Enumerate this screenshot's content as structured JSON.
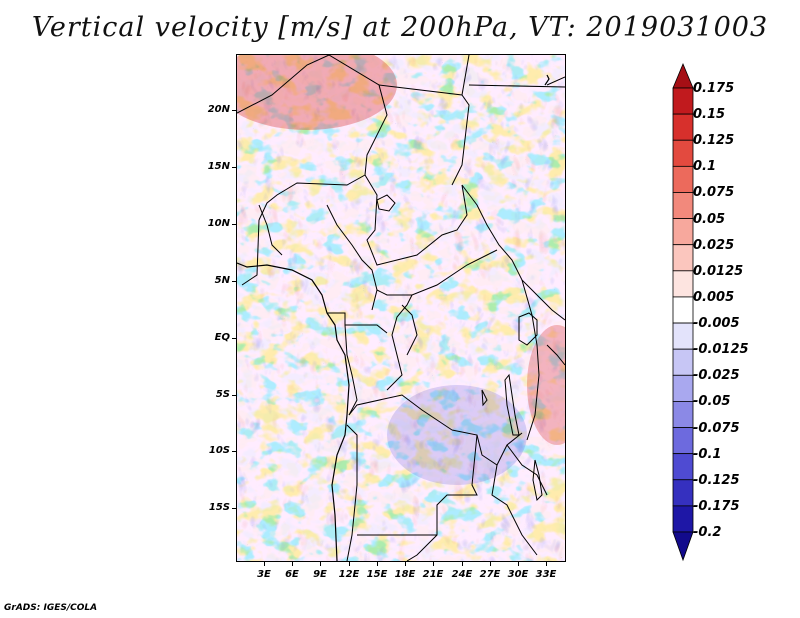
{
  "title": "Vertical velocity [m/s] at 200hPa, VT: 2019031003",
  "map": {
    "latitude_labels": [
      "20N",
      "15N",
      "10N",
      "5N",
      "EQ",
      "5S",
      "10S",
      "15S"
    ],
    "longitude_labels": [
      "3E",
      "6E",
      "9E",
      "12E",
      "15E",
      "18E",
      "21E",
      "24E",
      "27E",
      "30E",
      "33E"
    ],
    "lat_range": [
      -19,
      25
    ],
    "lon_range": [
      0,
      35
    ]
  },
  "colorbar": {
    "labels": [
      "0.175",
      "0.15",
      "0.125",
      "0.1",
      "0.075",
      "0.05",
      "0.025",
      "0.0125",
      "0.005",
      "-0.005",
      "-0.0125",
      "-0.025",
      "-0.05",
      "-0.075",
      "-0.1",
      "-0.125",
      "-0.175",
      "-0.2"
    ],
    "colors": [
      "#a50f15",
      "#c11a1e",
      "#d7302c",
      "#e34a3f",
      "#ec6a5c",
      "#f2897c",
      "#f7a89d",
      "#fbc6be",
      "#fde4e0",
      "#ffffff",
      "#e3e3fb",
      "#c7c6f5",
      "#a9a8ef",
      "#8b89e6",
      "#6d6ade",
      "#4f4bd2",
      "#3530bf",
      "#1e17a6",
      "#120a8c"
    ]
  },
  "credit": "GrADS: IGES/COLA"
}
